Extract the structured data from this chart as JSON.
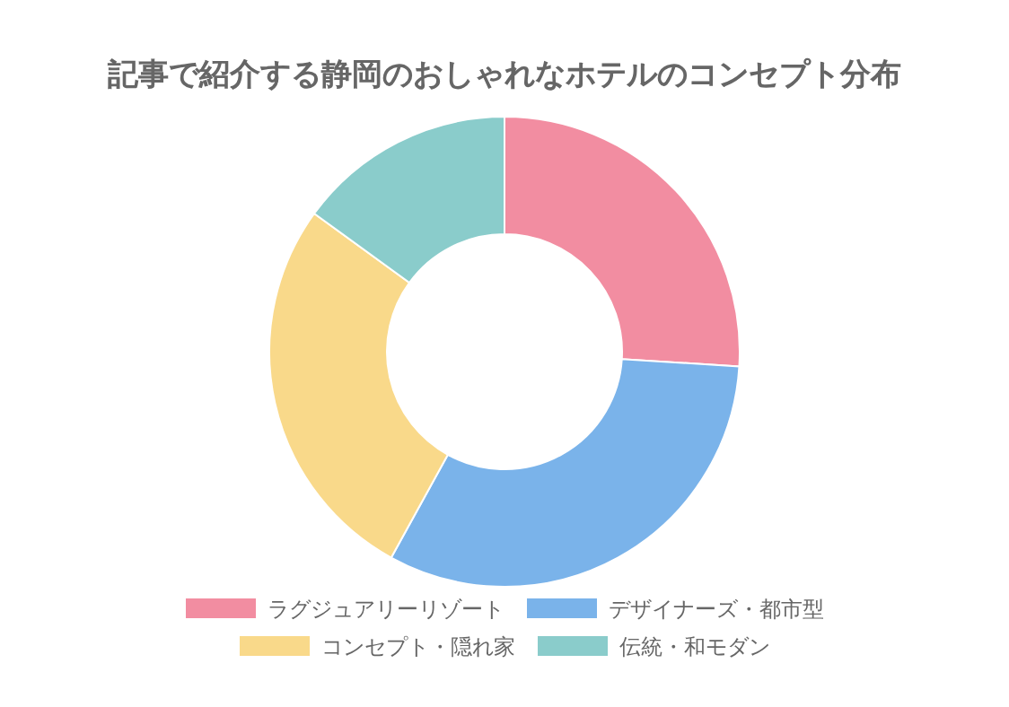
{
  "chart_data": {
    "type": "donut",
    "title": "記事で紹介する静岡のおしゃれなホテルのコンセプト分布",
    "categories": [
      "ラグジュアリーリゾート",
      "デザイナーズ・都市型",
      "コンセプト・隠れ家",
      "伝統・和モダン"
    ],
    "values": [
      26,
      32,
      27,
      15
    ],
    "colors": [
      "#f28da1",
      "#7ab3ea",
      "#f9d98a",
      "#8acccb"
    ],
    "legend": "bottom"
  }
}
